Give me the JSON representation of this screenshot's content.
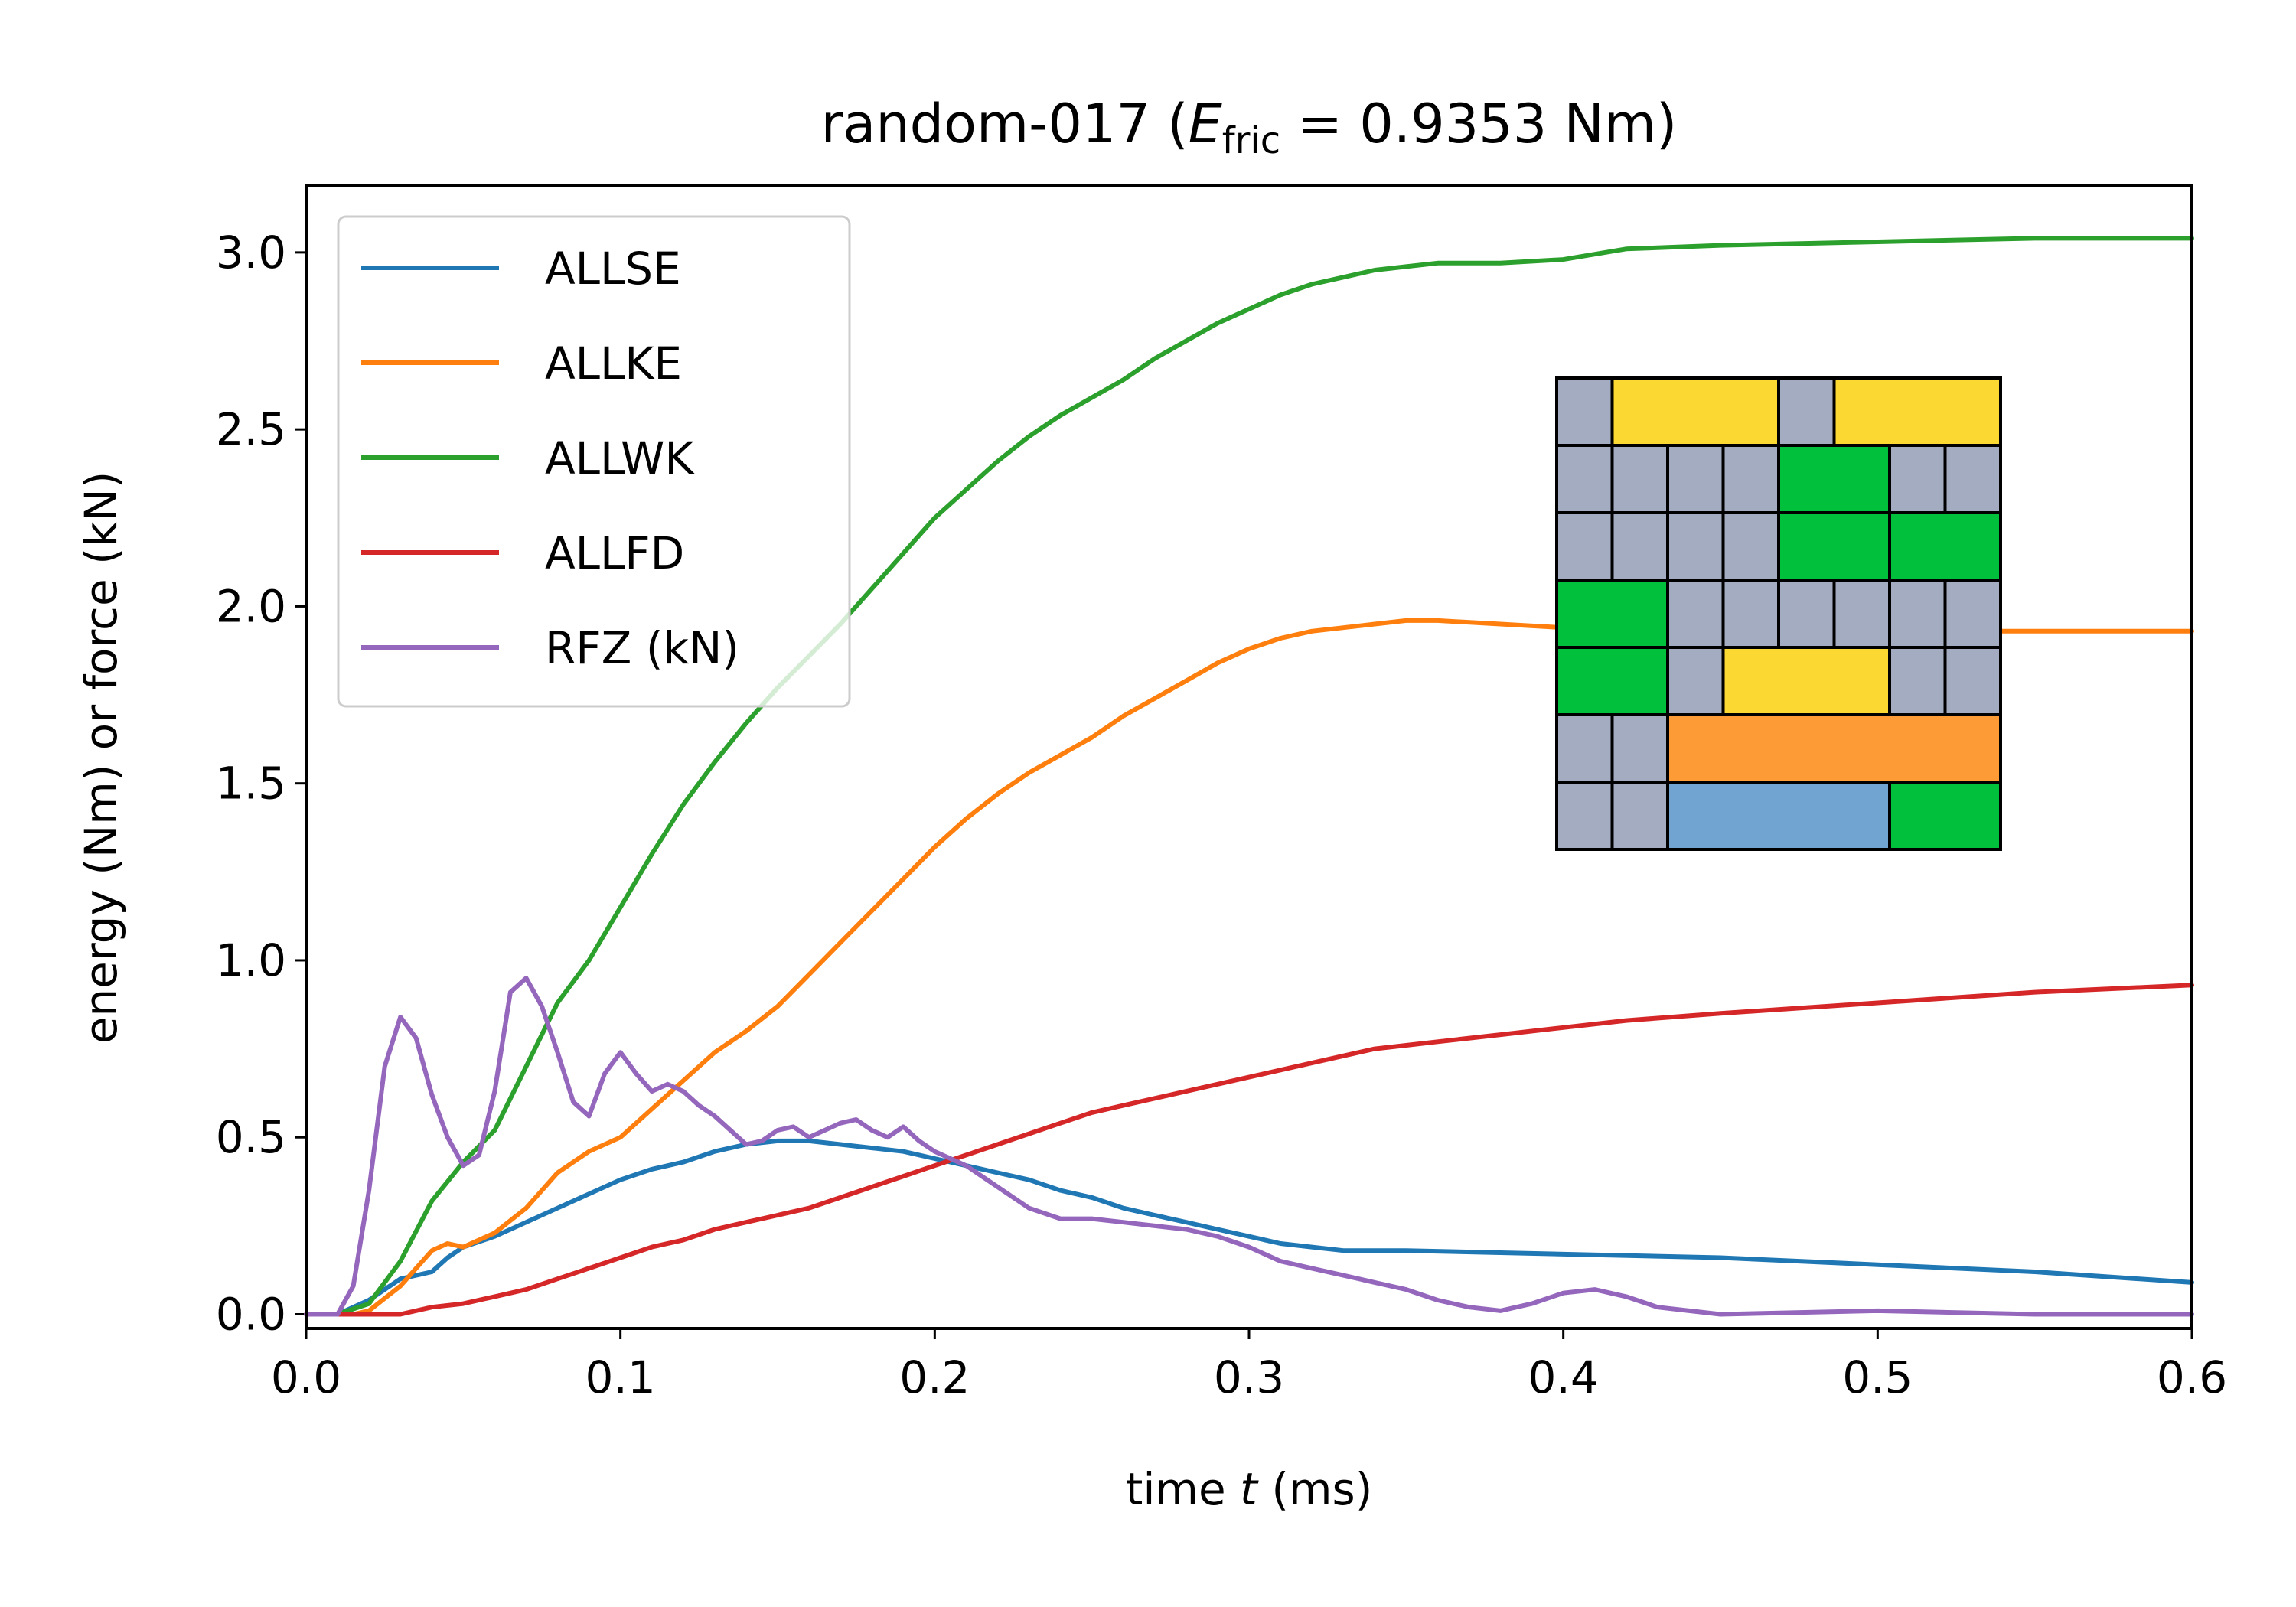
{
  "chart_data": {
    "type": "line",
    "title": {
      "prefix": "random-017 (",
      "symbol": "E",
      "subscript": "fric",
      "suffix": " = 0.9353 Nm)"
    },
    "xlabel": {
      "prefix": "time ",
      "symbol": "t",
      "suffix": " (ms)"
    },
    "ylabel": "energy (Nm) or force (kN)",
    "xlim": [
      0.0,
      0.6
    ],
    "ylim": [
      -0.04,
      3.19
    ],
    "xticks": [
      0.0,
      0.1,
      0.2,
      0.3,
      0.4,
      0.5,
      0.6
    ],
    "xtick_labels": [
      "0.0",
      "0.1",
      "0.2",
      "0.3",
      "0.4",
      "0.5",
      "0.6"
    ],
    "yticks": [
      0.0,
      0.5,
      1.0,
      1.5,
      2.0,
      2.5,
      3.0
    ],
    "ytick_labels": [
      "0.0",
      "0.5",
      "1.0",
      "1.5",
      "2.0",
      "2.5",
      "3.0"
    ],
    "grid": false,
    "legend_position": "top-left",
    "series": [
      {
        "name": "ALLSE",
        "color": "#1f77b4",
        "points": [
          [
            0.0,
            0.0
          ],
          [
            0.01,
            0.0
          ],
          [
            0.02,
            0.04
          ],
          [
            0.03,
            0.1
          ],
          [
            0.04,
            0.12
          ],
          [
            0.045,
            0.16
          ],
          [
            0.05,
            0.19
          ],
          [
            0.06,
            0.22
          ],
          [
            0.07,
            0.26
          ],
          [
            0.08,
            0.3
          ],
          [
            0.09,
            0.34
          ],
          [
            0.1,
            0.38
          ],
          [
            0.11,
            0.41
          ],
          [
            0.12,
            0.43
          ],
          [
            0.13,
            0.46
          ],
          [
            0.14,
            0.48
          ],
          [
            0.15,
            0.49
          ],
          [
            0.16,
            0.49
          ],
          [
            0.17,
            0.48
          ],
          [
            0.18,
            0.47
          ],
          [
            0.19,
            0.46
          ],
          [
            0.2,
            0.44
          ],
          [
            0.21,
            0.42
          ],
          [
            0.22,
            0.4
          ],
          [
            0.23,
            0.38
          ],
          [
            0.24,
            0.35
          ],
          [
            0.25,
            0.33
          ],
          [
            0.26,
            0.3
          ],
          [
            0.27,
            0.28
          ],
          [
            0.28,
            0.26
          ],
          [
            0.29,
            0.24
          ],
          [
            0.3,
            0.22
          ],
          [
            0.31,
            0.2
          ],
          [
            0.32,
            0.19
          ],
          [
            0.33,
            0.18
          ],
          [
            0.35,
            0.18
          ],
          [
            0.4,
            0.17
          ],
          [
            0.45,
            0.16
          ],
          [
            0.5,
            0.14
          ],
          [
            0.55,
            0.12
          ],
          [
            0.6,
            0.09
          ]
        ]
      },
      {
        "name": "ALLKE",
        "color": "#ff7f0e",
        "points": [
          [
            0.0,
            0.0
          ],
          [
            0.015,
            0.0
          ],
          [
            0.02,
            0.01
          ],
          [
            0.03,
            0.08
          ],
          [
            0.04,
            0.18
          ],
          [
            0.045,
            0.2
          ],
          [
            0.05,
            0.19
          ],
          [
            0.06,
            0.23
          ],
          [
            0.07,
            0.3
          ],
          [
            0.08,
            0.4
          ],
          [
            0.09,
            0.46
          ],
          [
            0.1,
            0.5
          ],
          [
            0.11,
            0.58
          ],
          [
            0.12,
            0.66
          ],
          [
            0.13,
            0.74
          ],
          [
            0.14,
            0.8
          ],
          [
            0.15,
            0.87
          ],
          [
            0.16,
            0.96
          ],
          [
            0.17,
            1.05
          ],
          [
            0.18,
            1.14
          ],
          [
            0.19,
            1.23
          ],
          [
            0.2,
            1.32
          ],
          [
            0.21,
            1.4
          ],
          [
            0.22,
            1.47
          ],
          [
            0.23,
            1.53
          ],
          [
            0.24,
            1.58
          ],
          [
            0.25,
            1.63
          ],
          [
            0.26,
            1.69
          ],
          [
            0.27,
            1.74
          ],
          [
            0.28,
            1.79
          ],
          [
            0.29,
            1.84
          ],
          [
            0.3,
            1.88
          ],
          [
            0.31,
            1.91
          ],
          [
            0.32,
            1.93
          ],
          [
            0.33,
            1.94
          ],
          [
            0.34,
            1.95
          ],
          [
            0.35,
            1.96
          ],
          [
            0.36,
            1.96
          ],
          [
            0.38,
            1.95
          ],
          [
            0.4,
            1.94
          ],
          [
            0.45,
            1.93
          ],
          [
            0.5,
            1.93
          ],
          [
            0.55,
            1.93
          ],
          [
            0.6,
            1.93
          ]
        ]
      },
      {
        "name": "ALLWK",
        "color": "#2ca02c",
        "points": [
          [
            0.0,
            0.0
          ],
          [
            0.01,
            0.0
          ],
          [
            0.02,
            0.03
          ],
          [
            0.03,
            0.15
          ],
          [
            0.04,
            0.32
          ],
          [
            0.05,
            0.43
          ],
          [
            0.06,
            0.52
          ],
          [
            0.07,
            0.7
          ],
          [
            0.08,
            0.88
          ],
          [
            0.09,
            1.0
          ],
          [
            0.1,
            1.15
          ],
          [
            0.11,
            1.3
          ],
          [
            0.12,
            1.44
          ],
          [
            0.13,
            1.56
          ],
          [
            0.14,
            1.67
          ],
          [
            0.15,
            1.77
          ],
          [
            0.16,
            1.86
          ],
          [
            0.17,
            1.95
          ],
          [
            0.18,
            2.05
          ],
          [
            0.19,
            2.15
          ],
          [
            0.2,
            2.25
          ],
          [
            0.21,
            2.33
          ],
          [
            0.22,
            2.41
          ],
          [
            0.23,
            2.48
          ],
          [
            0.24,
            2.54
          ],
          [
            0.25,
            2.59
          ],
          [
            0.26,
            2.64
          ],
          [
            0.27,
            2.7
          ],
          [
            0.28,
            2.75
          ],
          [
            0.29,
            2.8
          ],
          [
            0.3,
            2.84
          ],
          [
            0.31,
            2.88
          ],
          [
            0.32,
            2.91
          ],
          [
            0.33,
            2.93
          ],
          [
            0.34,
            2.95
          ],
          [
            0.35,
            2.96
          ],
          [
            0.36,
            2.97
          ],
          [
            0.38,
            2.97
          ],
          [
            0.4,
            2.98
          ],
          [
            0.42,
            3.01
          ],
          [
            0.45,
            3.02
          ],
          [
            0.5,
            3.03
          ],
          [
            0.55,
            3.04
          ],
          [
            0.6,
            3.04
          ]
        ]
      },
      {
        "name": "ALLFD",
        "color": "#d62728",
        "points": [
          [
            0.0,
            0.0
          ],
          [
            0.02,
            0.0
          ],
          [
            0.03,
            0.0
          ],
          [
            0.04,
            0.02
          ],
          [
            0.05,
            0.03
          ],
          [
            0.06,
            0.05
          ],
          [
            0.07,
            0.07
          ],
          [
            0.08,
            0.1
          ],
          [
            0.09,
            0.13
          ],
          [
            0.1,
            0.16
          ],
          [
            0.11,
            0.19
          ],
          [
            0.12,
            0.21
          ],
          [
            0.13,
            0.24
          ],
          [
            0.14,
            0.26
          ],
          [
            0.15,
            0.28
          ],
          [
            0.16,
            0.3
          ],
          [
            0.17,
            0.33
          ],
          [
            0.18,
            0.36
          ],
          [
            0.19,
            0.39
          ],
          [
            0.2,
            0.42
          ],
          [
            0.21,
            0.45
          ],
          [
            0.22,
            0.48
          ],
          [
            0.23,
            0.51
          ],
          [
            0.24,
            0.54
          ],
          [
            0.25,
            0.57
          ],
          [
            0.26,
            0.59
          ],
          [
            0.27,
            0.61
          ],
          [
            0.28,
            0.63
          ],
          [
            0.29,
            0.65
          ],
          [
            0.3,
            0.67
          ],
          [
            0.31,
            0.69
          ],
          [
            0.32,
            0.71
          ],
          [
            0.33,
            0.73
          ],
          [
            0.34,
            0.75
          ],
          [
            0.35,
            0.76
          ],
          [
            0.36,
            0.77
          ],
          [
            0.38,
            0.79
          ],
          [
            0.4,
            0.81
          ],
          [
            0.42,
            0.83
          ],
          [
            0.45,
            0.85
          ],
          [
            0.5,
            0.88
          ],
          [
            0.55,
            0.91
          ],
          [
            0.6,
            0.93
          ]
        ]
      },
      {
        "name": "RFZ (kN)",
        "color": "#9467bd",
        "points": [
          [
            0.0,
            0.0
          ],
          [
            0.01,
            0.0
          ],
          [
            0.015,
            0.08
          ],
          [
            0.02,
            0.35
          ],
          [
            0.025,
            0.7
          ],
          [
            0.03,
            0.84
          ],
          [
            0.035,
            0.78
          ],
          [
            0.04,
            0.62
          ],
          [
            0.045,
            0.5
          ],
          [
            0.05,
            0.42
          ],
          [
            0.055,
            0.45
          ],
          [
            0.06,
            0.63
          ],
          [
            0.065,
            0.91
          ],
          [
            0.07,
            0.95
          ],
          [
            0.075,
            0.87
          ],
          [
            0.08,
            0.74
          ],
          [
            0.085,
            0.6
          ],
          [
            0.09,
            0.56
          ],
          [
            0.095,
            0.68
          ],
          [
            0.1,
            0.74
          ],
          [
            0.105,
            0.68
          ],
          [
            0.11,
            0.63
          ],
          [
            0.115,
            0.65
          ],
          [
            0.12,
            0.63
          ],
          [
            0.125,
            0.59
          ],
          [
            0.13,
            0.56
          ],
          [
            0.135,
            0.52
          ],
          [
            0.14,
            0.48
          ],
          [
            0.145,
            0.49
          ],
          [
            0.15,
            0.52
          ],
          [
            0.155,
            0.53
          ],
          [
            0.16,
            0.5
          ],
          [
            0.165,
            0.52
          ],
          [
            0.17,
            0.54
          ],
          [
            0.175,
            0.55
          ],
          [
            0.18,
            0.52
          ],
          [
            0.185,
            0.5
          ],
          [
            0.19,
            0.53
          ],
          [
            0.195,
            0.49
          ],
          [
            0.2,
            0.46
          ],
          [
            0.21,
            0.42
          ],
          [
            0.22,
            0.36
          ],
          [
            0.23,
            0.3
          ],
          [
            0.24,
            0.27
          ],
          [
            0.25,
            0.27
          ],
          [
            0.26,
            0.26
          ],
          [
            0.27,
            0.25
          ],
          [
            0.28,
            0.24
          ],
          [
            0.29,
            0.22
          ],
          [
            0.3,
            0.19
          ],
          [
            0.31,
            0.15
          ],
          [
            0.32,
            0.13
          ],
          [
            0.33,
            0.11
          ],
          [
            0.34,
            0.09
          ],
          [
            0.35,
            0.07
          ],
          [
            0.36,
            0.04
          ],
          [
            0.37,
            0.02
          ],
          [
            0.38,
            0.01
          ],
          [
            0.39,
            0.03
          ],
          [
            0.4,
            0.06
          ],
          [
            0.41,
            0.07
          ],
          [
            0.42,
            0.05
          ],
          [
            0.43,
            0.02
          ],
          [
            0.44,
            0.01
          ],
          [
            0.45,
            0.0
          ],
          [
            0.5,
            0.01
          ],
          [
            0.55,
            0.0
          ],
          [
            0.6,
            0.0
          ]
        ]
      }
    ],
    "inset": {
      "rows": [
        [
          {
            "span": 1,
            "color": "#a3acc0"
          },
          {
            "span": 3,
            "color": "#fcd932"
          },
          {
            "span": 1,
            "color": "#a3acc0"
          },
          {
            "span": 3,
            "color": "#fcd932"
          }
        ],
        [
          {
            "span": 1,
            "color": "#a3acc0"
          },
          {
            "span": 1,
            "color": "#a3acc0"
          },
          {
            "span": 1,
            "color": "#a3acc0"
          },
          {
            "span": 1,
            "color": "#a3acc0"
          },
          {
            "span": 2,
            "color": "#00c03c"
          },
          {
            "span": 1,
            "color": "#a3acc0"
          },
          {
            "span": 1,
            "color": "#a3acc0"
          }
        ],
        [
          {
            "span": 1,
            "color": "#a3acc0"
          },
          {
            "span": 1,
            "color": "#a3acc0"
          },
          {
            "span": 1,
            "color": "#a3acc0"
          },
          {
            "span": 1,
            "color": "#a3acc0"
          },
          {
            "span": 2,
            "color": "#00c03c"
          },
          {
            "span": 2,
            "color": "#00c03c"
          }
        ],
        [
          {
            "span": 2,
            "color": "#00c03c"
          },
          {
            "span": 1,
            "color": "#a3acc0"
          },
          {
            "span": 1,
            "color": "#a3acc0"
          },
          {
            "span": 1,
            "color": "#a3acc0"
          },
          {
            "span": 1,
            "color": "#a3acc0"
          },
          {
            "span": 1,
            "color": "#a3acc0"
          },
          {
            "span": 1,
            "color": "#a3acc0"
          }
        ],
        [
          {
            "span": 2,
            "color": "#00c03c"
          },
          {
            "span": 1,
            "color": "#a3acc0"
          },
          {
            "span": 3,
            "color": "#fcd932"
          },
          {
            "span": 1,
            "color": "#a3acc0"
          },
          {
            "span": 1,
            "color": "#a3acc0"
          }
        ],
        [
          {
            "span": 1,
            "color": "#a3acc0"
          },
          {
            "span": 1,
            "color": "#a3acc0"
          },
          {
            "span": 6,
            "color": "#fd9c36"
          }
        ],
        [
          {
            "span": 1,
            "color": "#a3acc0"
          },
          {
            "span": 1,
            "color": "#a3acc0"
          },
          {
            "span": 4,
            "color": "#72a4d2"
          },
          {
            "span": 2,
            "color": "#00c03c"
          }
        ]
      ]
    }
  }
}
